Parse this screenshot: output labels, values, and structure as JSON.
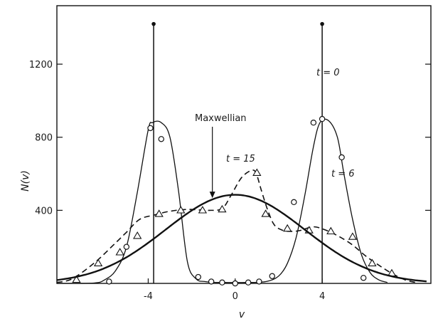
{
  "chart_data": {
    "type": "line",
    "title": "",
    "xlabel": "v",
    "ylabel": "N(v)",
    "xlim": [
      -8.2,
      9.0
    ],
    "ylim": [
      0,
      1520
    ],
    "grid": false,
    "x_ticks": [
      {
        "value": -4,
        "label": "-4"
      },
      {
        "value": 0,
        "label": "0"
      },
      {
        "value": 4,
        "label": "4"
      }
    ],
    "y_ticks": [
      {
        "value": 400,
        "label": "400"
      },
      {
        "value": 800,
        "label": "800"
      },
      {
        "value": 1200,
        "label": "1200"
      }
    ],
    "series": [
      {
        "key": "t0",
        "label": "t = 0",
        "style": "spike",
        "x": [
          -3.75,
          4.0
        ],
        "y": [
          1420,
          1420
        ]
      },
      {
        "key": "t6",
        "label": "t = 6",
        "style": "solid-thin",
        "curve_x": [
          -8.2,
          -6.5,
          -6.0,
          -5.5,
          -5.0,
          -4.5,
          -4.0,
          -3.8,
          -3.4,
          -3.0,
          -2.6,
          -2.2,
          -1.8,
          -1.4,
          -1.0,
          -0.5,
          0.0,
          0.5,
          1.0,
          1.5,
          2.0,
          2.4,
          2.8,
          3.2,
          3.6,
          3.9,
          4.3,
          4.7,
          5.0,
          5.4,
          5.8,
          6.2,
          6.6,
          7.0
        ],
        "curve_y": [
          0,
          2,
          20,
          70,
          200,
          500,
          840,
          880,
          880,
          800,
          500,
          120,
          25,
          10,
          6,
          5,
          5,
          5,
          6,
          12,
          40,
          110,
          250,
          480,
          750,
          880,
          890,
          800,
          600,
          350,
          160,
          60,
          20,
          5
        ],
        "markers_x": [
          -5.8,
          -5.0,
          -3.9,
          -3.4,
          -1.7,
          -1.1,
          -0.6,
          0.0,
          0.6,
          1.1,
          1.7,
          2.7,
          3.6,
          4.0,
          4.9,
          5.9
        ],
        "markers_y": [
          10,
          200,
          850,
          790,
          35,
          10,
          5,
          0,
          5,
          10,
          40,
          445,
          880,
          900,
          690,
          30
        ]
      },
      {
        "key": "t15",
        "label": "t = 15",
        "style": "dashed",
        "curve_x": [
          -8.2,
          -7.5,
          -6.5,
          -5.6,
          -5.0,
          -4.4,
          -3.7,
          -3.0,
          -2.2,
          -1.2,
          -0.6,
          -0.2,
          0.3,
          0.8,
          1.0,
          1.2,
          1.5,
          1.8,
          2.2,
          2.6,
          3.0,
          3.6,
          4.2,
          4.8,
          5.4,
          6.0,
          6.6,
          7.2,
          7.8,
          8.3
        ],
        "curve_y": [
          5,
          25,
          110,
          210,
          280,
          350,
          375,
          395,
          405,
          400,
          410,
          480,
          580,
          620,
          590,
          510,
          400,
          320,
          290,
          285,
          290,
          310,
          290,
          255,
          210,
          150,
          100,
          55,
          20,
          5
        ],
        "markers_x": [
          -7.3,
          -6.3,
          -5.3,
          -4.5,
          -3.5,
          -2.5,
          -1.5,
          -0.6,
          1.0,
          1.4,
          2.4,
          3.4,
          4.4,
          5.4,
          6.3,
          7.2
        ],
        "markers_y": [
          20,
          110,
          170,
          260,
          380,
          400,
          400,
          405,
          605,
          380,
          300,
          290,
          285,
          255,
          110,
          55
        ]
      },
      {
        "key": "maxwellian",
        "label": "Maxwellian",
        "style": "solid-thick",
        "mu": 0.0,
        "sigma": 3.2,
        "peak": 485,
        "range": [
          -8.2,
          8.8
        ]
      }
    ],
    "annotations": {
      "t0": "t = 0",
      "t6": "t = 6",
      "t15": "t = 15",
      "maxwellian": "Maxwellian"
    }
  }
}
